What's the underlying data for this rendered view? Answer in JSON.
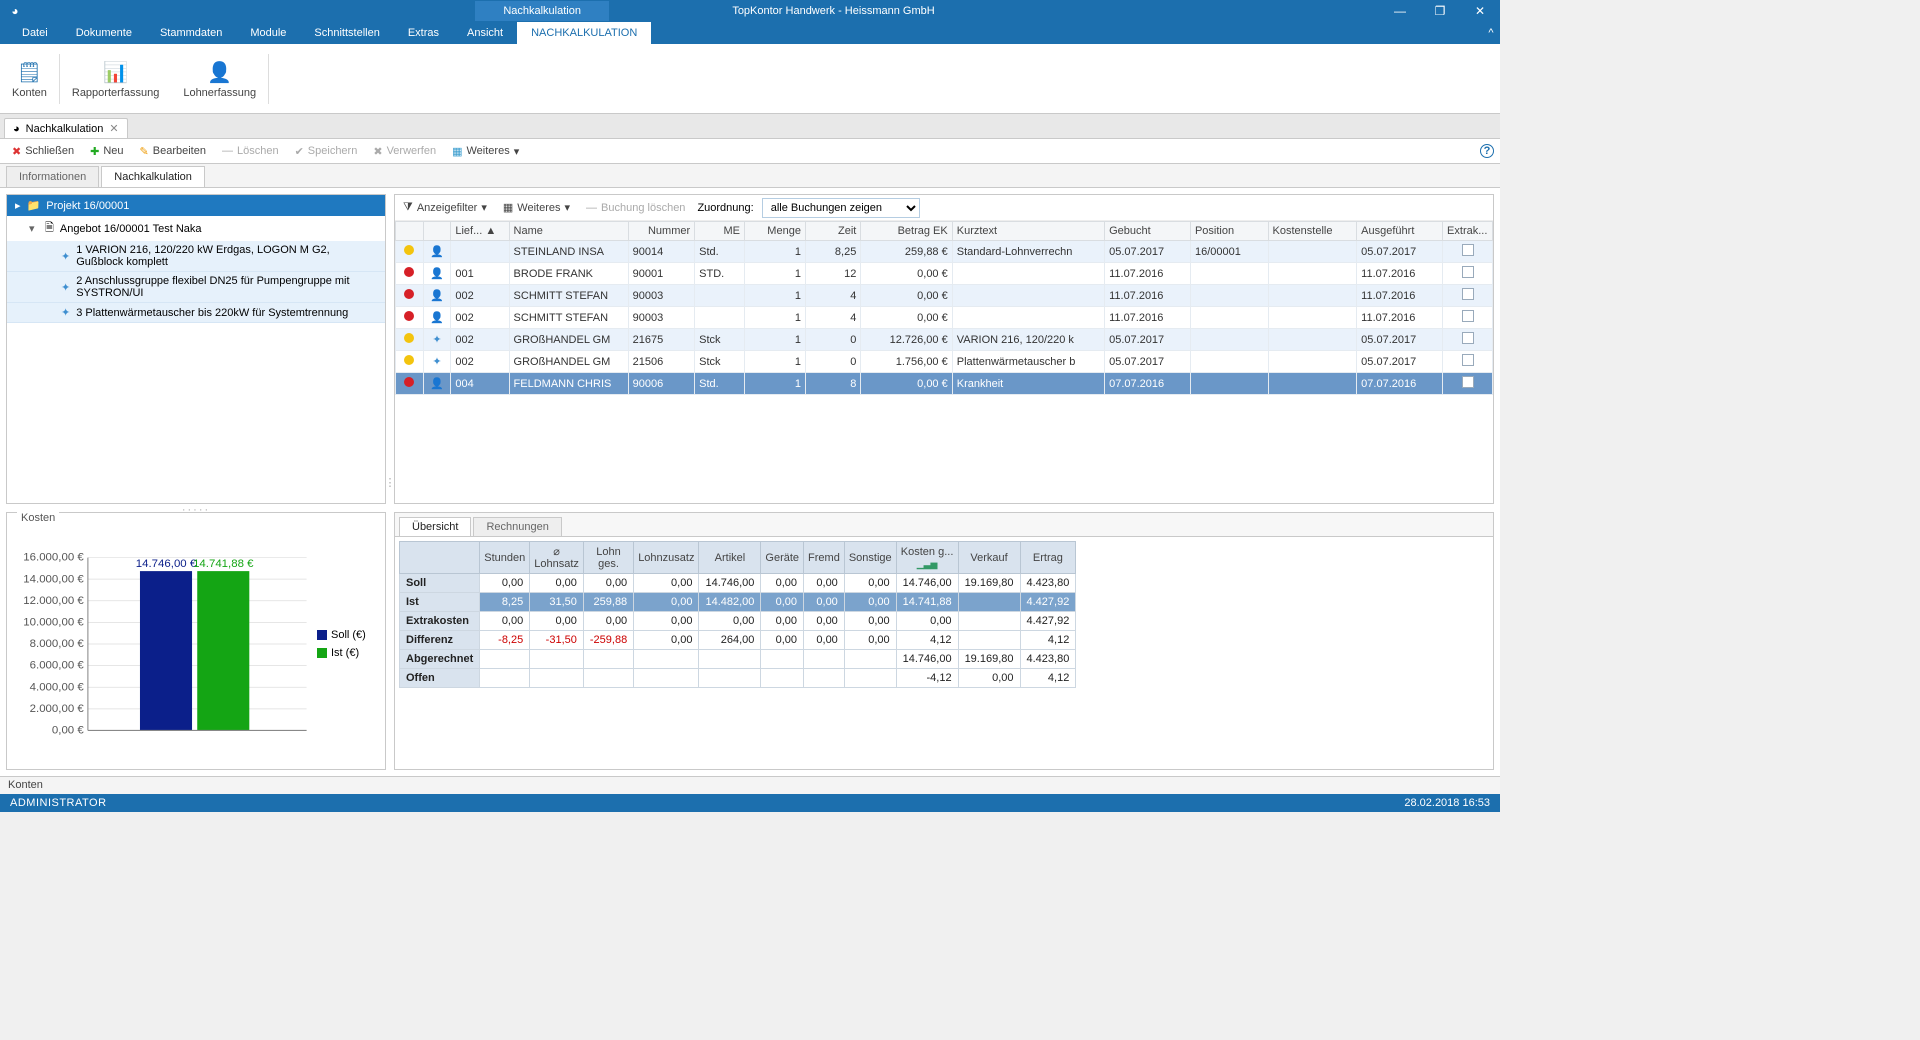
{
  "app": {
    "title_section": "Nachkalkulation",
    "title_full": "TopKontor Handwerk -  Heissmann GmbH"
  },
  "menu": [
    "Datei",
    "Dokumente",
    "Stammdaten",
    "Module",
    "Schnittstellen",
    "Extras",
    "Ansicht",
    "NACHKALKULATION"
  ],
  "menu_active_index": 7,
  "ribbon": [
    {
      "label": "Konten"
    },
    {
      "label": "Rapporterfassung"
    },
    {
      "label": "Lohnerfassung"
    }
  ],
  "doctab": {
    "label": "Nachkalkulation"
  },
  "toolbar": {
    "close": "Schließen",
    "new": "Neu",
    "edit": "Bearbeiten",
    "delete": "Löschen",
    "save": "Speichern",
    "discard": "Verwerfen",
    "more": "Weiteres"
  },
  "subtabs": {
    "info": "Informationen",
    "nk": "Nachkalkulation",
    "active": "nk"
  },
  "tree": {
    "project": "Projekt 16/00001",
    "offer": "Angebot 16/00001 Test Naka",
    "items": [
      "1 VARION 216,  120/220 kW Erdgas, LOGON M G2, Gußblock komplett",
      "2 Anschlussgruppe flexibel DN25 für Pumpengruppe mit SYSTRON/UI",
      "3 Plattenwärmetauscher bis 220kW für Systemtrennung"
    ]
  },
  "chart": {
    "title": "Kosten",
    "y_ticks": [
      "16.000,00 €",
      "14.000,00 €",
      "12.000,00 €",
      "10.000,00 €",
      "8.000,00 €",
      "6.000,00 €",
      "4.000,00 €",
      "2.000,00 €",
      "0,00 €"
    ],
    "soll_label_top": "14.746,00 €",
    "ist_label_top": "14.741,88 €",
    "soll_color": "#0b1f8a",
    "ist_color": "#14a514",
    "legend_soll": "Soll (€)",
    "legend_ist": "Ist (€)"
  },
  "book_filter": {
    "anz": "Anzeigefilter",
    "more": "Weiteres",
    "del": "Buchung löschen",
    "zu_lbl": "Zuordnung:",
    "zu_val": "alle Buchungen zeigen"
  },
  "book_columns": [
    "",
    "",
    "Lief... ▲",
    "Name",
    "Nummer",
    "ME",
    "Menge",
    "Zeit",
    "Betrag EK",
    "Kurztext",
    "Gebucht",
    "Position",
    "Kostenstelle",
    "Ausgeführt",
    "Extrak..."
  ],
  "book_rows": [
    {
      "dot": "yellow",
      "type": "person",
      "lief": "",
      "name": "STEINLAND INSA",
      "nummer": "90014",
      "me": "Std.",
      "menge": "1",
      "zeit": "8,25",
      "betrag": "259,88 €",
      "kurz": "Standard-Lohnverrechn",
      "gebucht": "05.07.2017",
      "position": "16/00001",
      "kst": "",
      "ausg": "05.07.2017"
    },
    {
      "dot": "red",
      "type": "person",
      "lief": "001",
      "name": "BRODE FRANK",
      "nummer": "90001",
      "me": "STD.",
      "menge": "1",
      "zeit": "12",
      "betrag": "0,00 €",
      "kurz": "",
      "gebucht": "11.07.2016",
      "position": "",
      "kst": "",
      "ausg": "11.07.2016"
    },
    {
      "dot": "red",
      "type": "person",
      "lief": "002",
      "name": "SCHMITT STEFAN",
      "nummer": "90003",
      "me": "",
      "menge": "1",
      "zeit": "4",
      "betrag": "0,00 €",
      "kurz": "",
      "gebucht": "11.07.2016",
      "position": "",
      "kst": "",
      "ausg": "11.07.2016"
    },
    {
      "dot": "red",
      "type": "person",
      "lief": "002",
      "name": "SCHMITT STEFAN",
      "nummer": "90003",
      "me": "",
      "menge": "1",
      "zeit": "4",
      "betrag": "0,00 €",
      "kurz": "",
      "gebucht": "11.07.2016",
      "position": "",
      "kst": "",
      "ausg": "11.07.2016"
    },
    {
      "dot": "yellow",
      "type": "puzzle",
      "lief": "002",
      "name": "GROßHANDEL GM",
      "nummer": "21675",
      "me": "Stck",
      "menge": "1",
      "zeit": "0",
      "betrag": "12.726,00 €",
      "kurz": "VARION 216,  120/220 k",
      "gebucht": "05.07.2017",
      "position": "",
      "kst": "",
      "ausg": "05.07.2017"
    },
    {
      "dot": "yellow",
      "type": "puzzle",
      "lief": "002",
      "name": "GROßHANDEL GM",
      "nummer": "21506",
      "me": "Stck",
      "menge": "1",
      "zeit": "0",
      "betrag": "1.756,00 €",
      "kurz": "Plattenwärmetauscher b",
      "gebucht": "05.07.2017",
      "position": "",
      "kst": "",
      "ausg": "05.07.2017"
    },
    {
      "dot": "red",
      "type": "person",
      "lief": "004",
      "name": "FELDMANN CHRIS",
      "nummer": "90006",
      "me": "Std.",
      "menge": "1",
      "zeit": "8",
      "betrag": "0,00 €",
      "kurz": "Krankheit",
      "gebucht": "07.07.2016",
      "position": "",
      "kst": "",
      "ausg": "07.07.2016",
      "selected": true
    }
  ],
  "sum_tabs": {
    "over": "Übersicht",
    "inv": "Rechnungen"
  },
  "sum_cols": [
    "Stunden",
    "⌀ Lohnsatz",
    "Lohn ges.",
    "Lohnzusatz",
    "Artikel",
    "Geräte",
    "Fremd",
    "Sonstige",
    "Kosten g...",
    "Verkauf",
    "Ertrag"
  ],
  "sum_chart_col_index": 8,
  "sum_rows": {
    "soll": {
      "lbl": "Soll",
      "vals": [
        "0,00",
        "0,00",
        "0,00",
        "0,00",
        "14.746,00",
        "0,00",
        "0,00",
        "0,00",
        "14.746,00",
        "19.169,80",
        "4.423,80"
      ]
    },
    "ist": {
      "lbl": "Ist",
      "vals": [
        "8,25",
        "31,50",
        "259,88",
        "0,00",
        "14.482,00",
        "0,00",
        "0,00",
        "0,00",
        "14.741,88",
        "",
        "4.427,92"
      ]
    },
    "extra": {
      "lbl": "Extrakosten",
      "vals": [
        "0,00",
        "0,00",
        "0,00",
        "0,00",
        "0,00",
        "0,00",
        "0,00",
        "0,00",
        "0,00",
        "",
        "4.427,92"
      ]
    },
    "diff": {
      "lbl": "Differenz",
      "vals": [
        "-8,25",
        "-31,50",
        "-259,88",
        "0,00",
        "264,00",
        "0,00",
        "0,00",
        "0,00",
        "4,12",
        "",
        "4,12"
      ],
      "neg": [
        0,
        1,
        2
      ]
    },
    "abg": {
      "lbl": "Abgerechnet",
      "vals": [
        "",
        "",
        "",
        "",
        "",
        "",
        "",
        "",
        "14.746,00",
        "19.169,80",
        "4.423,80"
      ]
    },
    "offen": {
      "lbl": "Offen",
      "vals": [
        "",
        "",
        "",
        "",
        "",
        "",
        "",
        "",
        "-4,12",
        "0,00",
        "4,12"
      ]
    }
  },
  "status": {
    "konten": "Konten",
    "user": "ADMINISTRATOR",
    "datetime": "28.02.2018 16:53"
  }
}
